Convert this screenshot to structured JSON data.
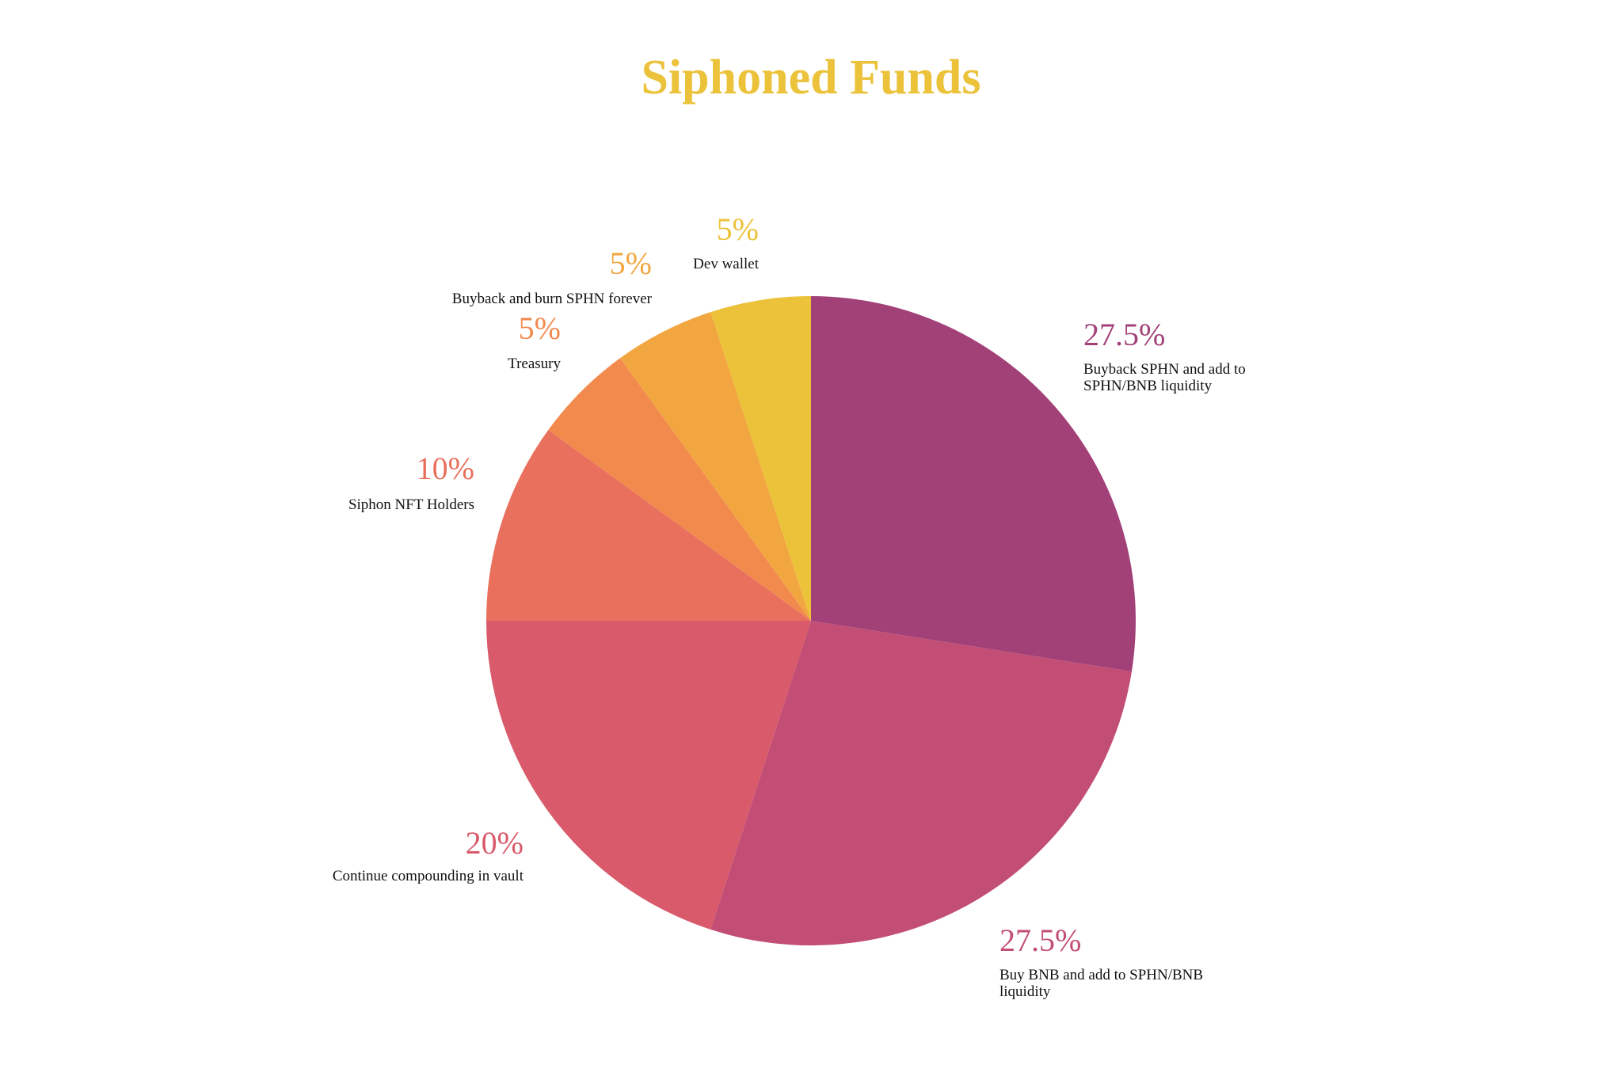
{
  "chart_data": {
    "type": "pie",
    "title": "Siphoned Funds",
    "title_color": "#ebc239",
    "start": "top",
    "direction": "clockwise",
    "legend": "none",
    "slices": [
      {
        "value": 27.5,
        "percent_label": "27.5%",
        "label_lines": [
          "Buyback SPHN and add to",
          "SPHN/BNB liquidity"
        ],
        "color": "#a24178"
      },
      {
        "value": 27.5,
        "percent_label": "27.5%",
        "label_lines": [
          "Buy BNB and add to SPHN/BNB",
          "liquidity"
        ],
        "color": "#c24d75"
      },
      {
        "value": 20,
        "percent_label": "20%",
        "label_lines": [
          "Continue compounding in vault"
        ],
        "color": "#d95a6b"
      },
      {
        "value": 10,
        "percent_label": "10%",
        "label_lines": [
          "Siphon NFT Holders"
        ],
        "color": "#e9705d"
      },
      {
        "value": 5,
        "percent_label": "5%",
        "label_lines": [
          "Treasury"
        ],
        "color": "#f28a4e"
      },
      {
        "value": 5,
        "percent_label": "5%",
        "label_lines": [
          "Buyback and burn SPHN forever"
        ],
        "color": "#f2a63f"
      },
      {
        "value": 5,
        "percent_label": "5%",
        "label_lines": [
          "Dev wallet"
        ],
        "color": "#ebc239"
      }
    ]
  }
}
